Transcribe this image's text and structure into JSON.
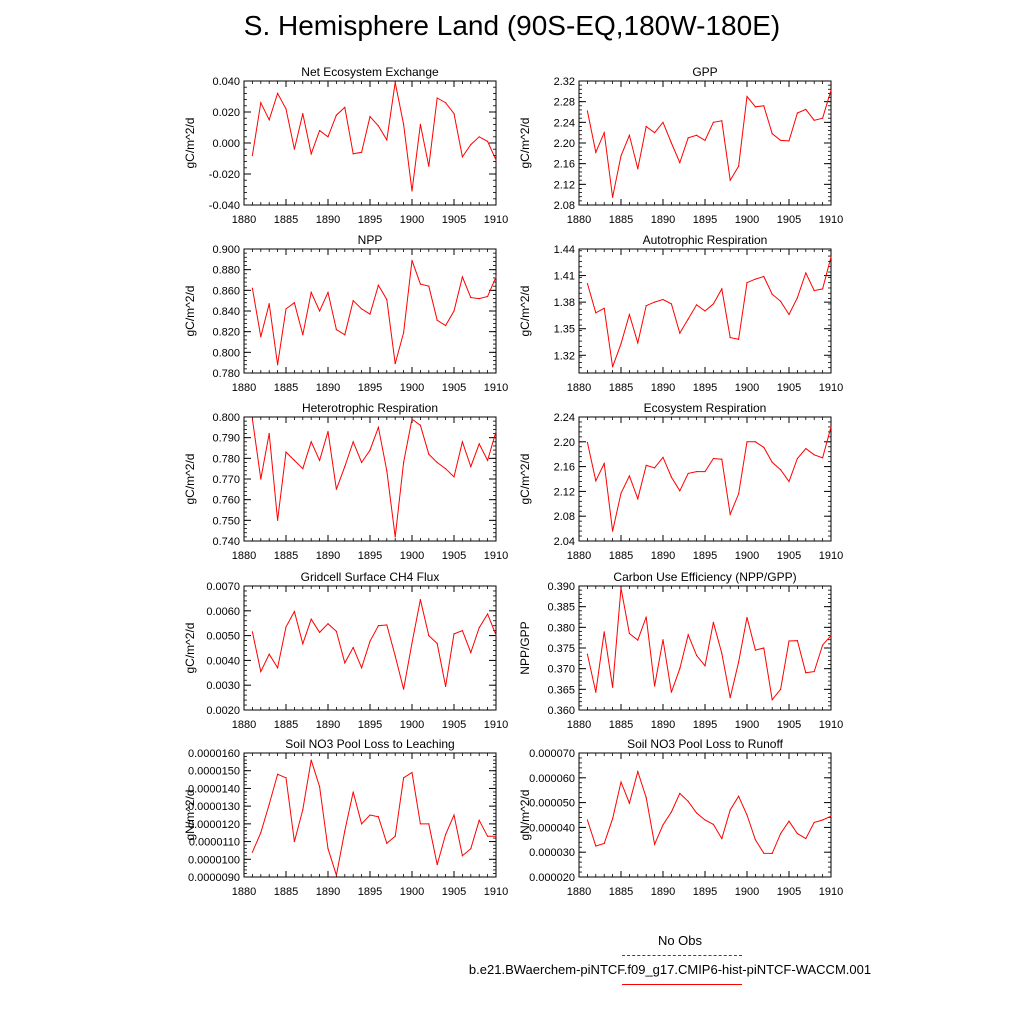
{
  "title": "S. Hemisphere Land (90S-EQ,180W-180E)",
  "legend": {
    "obs_label": "No Obs",
    "obs_color": "#3333cc",
    "model_label": "b.e21.BWaerchem-piNTCF.f09_g17.CMIP6-hist-piNTCF-WACCM.001",
    "model_color": "#ff0000"
  },
  "chart_data": [
    {
      "type": "line",
      "title": "Net Ecosystem Exchange",
      "ylabel": "gC/m^2/d",
      "xlim": [
        1880,
        1910
      ],
      "ylim": [
        -0.04,
        0.04
      ],
      "yticks": [
        -0.04,
        -0.02,
        0.0,
        0.02,
        0.04
      ],
      "ytick_labels": [
        "-0.040",
        "-0.020",
        "0.000",
        "0.020",
        "0.040"
      ],
      "xticks": [
        1880,
        1885,
        1890,
        1895,
        1900,
        1905,
        1910
      ],
      "xtick_labels": [
        "1880",
        "1885",
        "1890",
        "1895",
        "1900",
        "1905",
        "1910"
      ],
      "color": "#ff0000",
      "x": [
        1881,
        1882,
        1883,
        1884,
        1885,
        1886,
        1887,
        1888,
        1889,
        1890,
        1891,
        1892,
        1893,
        1894,
        1895,
        1896,
        1897,
        1898,
        1899,
        1900,
        1901,
        1902,
        1903,
        1904,
        1905,
        1906,
        1907,
        1908,
        1909,
        1910
      ],
      "y": [
        -0.008,
        0.026,
        0.015,
        0.032,
        0.022,
        -0.004,
        0.019,
        -0.007,
        0.008,
        0.004,
        0.018,
        0.023,
        -0.007,
        -0.006,
        0.017,
        0.011,
        0.002,
        0.039,
        0.012,
        -0.031,
        0.012,
        -0.015,
        0.029,
        0.026,
        0.019,
        -0.009,
        -0.001,
        0.004,
        0.001,
        -0.011
      ]
    },
    {
      "type": "line",
      "title": "GPP",
      "ylabel": "gC/m^2/d",
      "xlim": [
        1880,
        1910
      ],
      "ylim": [
        2.08,
        2.32
      ],
      "yticks": [
        2.08,
        2.12,
        2.16,
        2.2,
        2.24,
        2.28,
        2.32
      ],
      "ytick_labels": [
        "2.08",
        "2.12",
        "2.16",
        "2.20",
        "2.24",
        "2.28",
        "2.32"
      ],
      "xticks": [
        1880,
        1885,
        1890,
        1895,
        1900,
        1905,
        1910
      ],
      "xtick_labels": [
        "1880",
        "1885",
        "1890",
        "1895",
        "1900",
        "1905",
        "1910"
      ],
      "color": "#ff0000",
      "x": [
        1881,
        1882,
        1883,
        1884,
        1885,
        1886,
        1887,
        1888,
        1889,
        1890,
        1891,
        1892,
        1893,
        1894,
        1895,
        1896,
        1897,
        1898,
        1899,
        1900,
        1901,
        1902,
        1903,
        1904,
        1905,
        1906,
        1907,
        1908,
        1909,
        1910
      ],
      "y": [
        2.262,
        2.182,
        2.22,
        2.095,
        2.175,
        2.215,
        2.15,
        2.232,
        2.22,
        2.24,
        2.2,
        2.162,
        2.21,
        2.215,
        2.205,
        2.24,
        2.243,
        2.128,
        2.155,
        2.29,
        2.27,
        2.272,
        2.218,
        2.205,
        2.204,
        2.258,
        2.265,
        2.244,
        2.248,
        2.302
      ]
    },
    {
      "type": "line",
      "title": "NPP",
      "ylabel": "gC/m^2/d",
      "xlim": [
        1880,
        1910
      ],
      "ylim": [
        0.78,
        0.9
      ],
      "yticks": [
        0.78,
        0.8,
        0.82,
        0.84,
        0.86,
        0.88,
        0.9
      ],
      "ytick_labels": [
        "0.780",
        "0.800",
        "0.820",
        "0.840",
        "0.860",
        "0.880",
        "0.900"
      ],
      "xticks": [
        1880,
        1885,
        1890,
        1895,
        1900,
        1905,
        1910
      ],
      "xtick_labels": [
        "1880",
        "1885",
        "1890",
        "1895",
        "1900",
        "1905",
        "1910"
      ],
      "color": "#ff0000",
      "x": [
        1881,
        1882,
        1883,
        1884,
        1885,
        1886,
        1887,
        1888,
        1889,
        1890,
        1891,
        1892,
        1893,
        1894,
        1895,
        1896,
        1897,
        1898,
        1899,
        1900,
        1901,
        1902,
        1903,
        1904,
        1905,
        1906,
        1907,
        1908,
        1909,
        1910
      ],
      "y": [
        0.862,
        0.815,
        0.847,
        0.788,
        0.842,
        0.848,
        0.817,
        0.858,
        0.84,
        0.858,
        0.822,
        0.817,
        0.85,
        0.842,
        0.837,
        0.865,
        0.851,
        0.789,
        0.819,
        0.889,
        0.866,
        0.864,
        0.831,
        0.826,
        0.84,
        0.873,
        0.853,
        0.852,
        0.854,
        0.873
      ]
    },
    {
      "type": "line",
      "title": "Autotrophic Respiration",
      "ylabel": "gC/m^2/d",
      "xlim": [
        1880,
        1910
      ],
      "ylim": [
        1.3,
        1.44
      ],
      "yticks": [
        1.32,
        1.35,
        1.38,
        1.41,
        1.44
      ],
      "ytick_labels": [
        "1.32",
        "1.35",
        "1.38",
        "1.41",
        "1.44"
      ],
      "xticks": [
        1880,
        1885,
        1890,
        1895,
        1900,
        1905,
        1910
      ],
      "xtick_labels": [
        "1880",
        "1885",
        "1890",
        "1895",
        "1900",
        "1905",
        "1910"
      ],
      "color": "#ff0000",
      "x": [
        1881,
        1882,
        1883,
        1884,
        1885,
        1886,
        1887,
        1888,
        1889,
        1890,
        1891,
        1892,
        1893,
        1894,
        1895,
        1896,
        1897,
        1898,
        1899,
        1900,
        1901,
        1902,
        1903,
        1904,
        1905,
        1906,
        1907,
        1908,
        1909,
        1910
      ],
      "y": [
        1.401,
        1.368,
        1.373,
        1.307,
        1.333,
        1.366,
        1.334,
        1.376,
        1.38,
        1.383,
        1.378,
        1.345,
        1.361,
        1.377,
        1.37,
        1.378,
        1.395,
        1.34,
        1.338,
        1.402,
        1.406,
        1.409,
        1.389,
        1.381,
        1.366,
        1.385,
        1.413,
        1.393,
        1.395,
        1.431
      ]
    },
    {
      "type": "line",
      "title": "Heterotrophic Respiration",
      "ylabel": "gC/m^2/d",
      "xlim": [
        1880,
        1910
      ],
      "ylim": [
        0.74,
        0.8
      ],
      "yticks": [
        0.74,
        0.75,
        0.76,
        0.77,
        0.78,
        0.79,
        0.8
      ],
      "ytick_labels": [
        "0.740",
        "0.750",
        "0.760",
        "0.770",
        "0.780",
        "0.790",
        "0.800"
      ],
      "xticks": [
        1880,
        1885,
        1890,
        1895,
        1900,
        1905,
        1910
      ],
      "xtick_labels": [
        "1880",
        "1885",
        "1890",
        "1895",
        "1900",
        "1905",
        "1910"
      ],
      "color": "#ff0000",
      "x": [
        1881,
        1882,
        1883,
        1884,
        1885,
        1886,
        1887,
        1888,
        1889,
        1890,
        1891,
        1892,
        1893,
        1894,
        1895,
        1896,
        1897,
        1898,
        1899,
        1900,
        1901,
        1902,
        1903,
        1904,
        1905,
        1906,
        1907,
        1908,
        1909,
        1910
      ],
      "y": [
        0.799,
        0.77,
        0.792,
        0.75,
        0.783,
        0.779,
        0.775,
        0.788,
        0.779,
        0.793,
        0.765,
        0.776,
        0.788,
        0.778,
        0.784,
        0.795,
        0.774,
        0.742,
        0.778,
        0.799,
        0.796,
        0.782,
        0.778,
        0.775,
        0.771,
        0.788,
        0.776,
        0.787,
        0.779,
        0.793
      ]
    },
    {
      "type": "line",
      "title": "Ecosystem Respiration",
      "ylabel": "gC/m^2/d",
      "xlim": [
        1880,
        1910
      ],
      "ylim": [
        2.04,
        2.24
      ],
      "yticks": [
        2.04,
        2.08,
        2.12,
        2.16,
        2.2,
        2.24
      ],
      "ytick_labels": [
        "2.04",
        "2.08",
        "2.12",
        "2.16",
        "2.20",
        "2.24"
      ],
      "xticks": [
        1880,
        1885,
        1890,
        1895,
        1900,
        1905,
        1910
      ],
      "xtick_labels": [
        "1880",
        "1885",
        "1890",
        "1895",
        "1900",
        "1905",
        "1910"
      ],
      "color": "#ff0000",
      "x": [
        1881,
        1882,
        1883,
        1884,
        1885,
        1886,
        1887,
        1888,
        1889,
        1890,
        1891,
        1892,
        1893,
        1894,
        1895,
        1896,
        1897,
        1898,
        1899,
        1900,
        1901,
        1902,
        1903,
        1904,
        1905,
        1906,
        1907,
        1908,
        1909,
        1910
      ],
      "y": [
        2.199,
        2.137,
        2.165,
        2.056,
        2.117,
        2.145,
        2.108,
        2.162,
        2.158,
        2.175,
        2.143,
        2.121,
        2.149,
        2.152,
        2.152,
        2.173,
        2.172,
        2.083,
        2.116,
        2.2,
        2.2,
        2.191,
        2.167,
        2.155,
        2.136,
        2.173,
        2.189,
        2.179,
        2.174,
        2.224
      ]
    },
    {
      "type": "line",
      "title": "Gridcell Surface CH4 Flux",
      "ylabel": "gC/m^2/d",
      "xlim": [
        1880,
        1910
      ],
      "ylim": [
        0.002,
        0.007
      ],
      "yticks": [
        0.002,
        0.003,
        0.004,
        0.005,
        0.006,
        0.007
      ],
      "ytick_labels": [
        "0.0020",
        "0.0030",
        "0.0040",
        "0.0050",
        "0.0060",
        "0.0070"
      ],
      "xticks": [
        1880,
        1885,
        1890,
        1895,
        1900,
        1905,
        1910
      ],
      "xtick_labels": [
        "1880",
        "1885",
        "1890",
        "1895",
        "1900",
        "1905",
        "1910"
      ],
      "color": "#ff0000",
      "x": [
        1881,
        1882,
        1883,
        1884,
        1885,
        1886,
        1887,
        1888,
        1889,
        1890,
        1891,
        1892,
        1893,
        1894,
        1895,
        1896,
        1897,
        1898,
        1899,
        1900,
        1901,
        1902,
        1903,
        1904,
        1905,
        1906,
        1907,
        1908,
        1909,
        1910
      ],
      "y": [
        0.00515,
        0.00355,
        0.00425,
        0.0037,
        0.00535,
        0.00597,
        0.00467,
        0.00566,
        0.00513,
        0.00548,
        0.00517,
        0.0039,
        0.00452,
        0.0037,
        0.00477,
        0.0054,
        0.00543,
        0.00418,
        0.00284,
        0.0047,
        0.00645,
        0.005,
        0.00468,
        0.00295,
        0.00507,
        0.0052,
        0.00432,
        0.00532,
        0.00587,
        0.00502
      ]
    },
    {
      "type": "line",
      "title": "Carbon Use Efficiency (NPP/GPP)",
      "ylabel": "NPP/GPP",
      "xlim": [
        1880,
        1910
      ],
      "ylim": [
        0.36,
        0.39
      ],
      "yticks": [
        0.36,
        0.365,
        0.37,
        0.375,
        0.38,
        0.385,
        0.39
      ],
      "ytick_labels": [
        "0.360",
        "0.365",
        "0.370",
        "0.375",
        "0.380",
        "0.385",
        "0.390"
      ],
      "xticks": [
        1880,
        1885,
        1890,
        1895,
        1900,
        1905,
        1910
      ],
      "xtick_labels": [
        "1880",
        "1885",
        "1890",
        "1895",
        "1900",
        "1905",
        "1910"
      ],
      "color": "#ff0000",
      "x": [
        1881,
        1882,
        1883,
        1884,
        1885,
        1886,
        1887,
        1888,
        1889,
        1890,
        1891,
        1892,
        1893,
        1894,
        1895,
        1896,
        1897,
        1898,
        1899,
        1900,
        1901,
        1902,
        1903,
        1904,
        1905,
        1906,
        1907,
        1908,
        1909,
        1910
      ],
      "y": [
        0.3735,
        0.3643,
        0.3789,
        0.3655,
        0.3895,
        0.3785,
        0.3769,
        0.3825,
        0.3658,
        0.377,
        0.3643,
        0.37,
        0.3782,
        0.3732,
        0.3707,
        0.3812,
        0.3737,
        0.363,
        0.3716,
        0.3824,
        0.3745,
        0.375,
        0.3625,
        0.365,
        0.3767,
        0.3768,
        0.369,
        0.3693,
        0.3757,
        0.378
      ]
    },
    {
      "type": "line",
      "title": "Soil NO3 Pool Loss to Leaching",
      "ylabel": "gN/m^2/d",
      "xlim": [
        1880,
        1910
      ],
      "ylim": [
        9e-06,
        1.6e-05
      ],
      "yticks": [
        9e-06,
        1e-05,
        1.1e-05,
        1.2e-05,
        1.3e-05,
        1.4e-05,
        1.5e-05,
        1.6e-05
      ],
      "ytick_labels": [
        "0.0000090",
        "0.0000100",
        "0.0000110",
        "0.0000120",
        "0.0000130",
        "0.0000140",
        "0.0000150",
        "0.0000160"
      ],
      "xticks": [
        1880,
        1885,
        1890,
        1895,
        1900,
        1905,
        1910
      ],
      "xtick_labels": [
        "1880",
        "1885",
        "1890",
        "1895",
        "1900",
        "1905",
        "1910"
      ],
      "color": "#ff0000",
      "x": [
        1881,
        1882,
        1883,
        1884,
        1885,
        1886,
        1887,
        1888,
        1889,
        1890,
        1891,
        1892,
        1893,
        1894,
        1895,
        1896,
        1897,
        1898,
        1899,
        1900,
        1901,
        1902,
        1903,
        1904,
        1905,
        1906,
        1907,
        1908,
        1909,
        1910
      ],
      "y": [
        1.04e-05,
        1.15e-05,
        1.31e-05,
        1.48e-05,
        1.46e-05,
        1.1e-05,
        1.28e-05,
        1.56e-05,
        1.41e-05,
        1.06e-05,
        9.1e-06,
        1.16e-05,
        1.38e-05,
        1.2e-05,
        1.25e-05,
        1.24e-05,
        1.09e-05,
        1.13e-05,
        1.46e-05,
        1.49e-05,
        1.2e-05,
        1.2e-05,
        9.7e-06,
        1.14e-05,
        1.25e-05,
        1.02e-05,
        1.06e-05,
        1.22e-05,
        1.13e-05,
        1.13e-05
      ]
    },
    {
      "type": "line",
      "title": "Soil NO3 Pool Loss to Runoff",
      "ylabel": "gN/m^2/d",
      "xlim": [
        1880,
        1910
      ],
      "ylim": [
        2e-05,
        7e-05
      ],
      "yticks": [
        2e-05,
        3e-05,
        4e-05,
        5e-05,
        6e-05,
        7e-05
      ],
      "ytick_labels": [
        "0.000020",
        "0.000030",
        "0.000040",
        "0.000050",
        "0.000060",
        "0.000070"
      ],
      "xticks": [
        1880,
        1885,
        1890,
        1895,
        1900,
        1905,
        1910
      ],
      "xtick_labels": [
        "1880",
        "1885",
        "1890",
        "1895",
        "1900",
        "1905",
        "1910"
      ],
      "color": "#ff0000",
      "x": [
        1881,
        1882,
        1883,
        1884,
        1885,
        1886,
        1887,
        1888,
        1889,
        1890,
        1891,
        1892,
        1893,
        1894,
        1895,
        1896,
        1897,
        1898,
        1899,
        1900,
        1901,
        1902,
        1903,
        1904,
        1905,
        1906,
        1907,
        1908,
        1909,
        1910
      ],
      "y": [
        4.3e-05,
        3.25e-05,
        3.35e-05,
        4.35e-05,
        5.83e-05,
        4.98e-05,
        6.25e-05,
        5.2e-05,
        3.32e-05,
        4.1e-05,
        4.62e-05,
        5.37e-05,
        5.05e-05,
        4.58e-05,
        4.3e-05,
        4.12e-05,
        3.55e-05,
        4.7e-05,
        5.26e-05,
        4.5e-05,
        3.5e-05,
        2.96e-05,
        2.95e-05,
        3.75e-05,
        4.25e-05,
        3.75e-05,
        3.55e-05,
        4.2e-05,
        4.3e-05,
        4.45e-05
      ]
    }
  ]
}
